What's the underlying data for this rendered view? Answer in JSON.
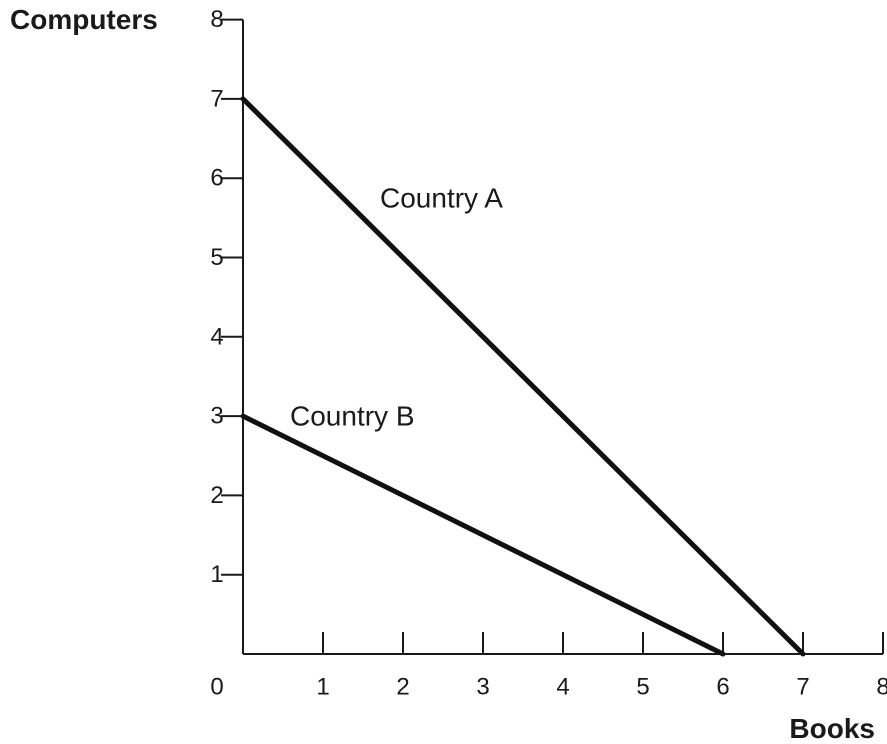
{
  "chart_data": {
    "type": "line",
    "xlabel": "Books",
    "ylabel": "Computers",
    "xlim": [
      0,
      8
    ],
    "ylim": [
      0,
      8
    ],
    "x_ticks": [
      "1",
      "2",
      "3",
      "4",
      "5",
      "6",
      "7",
      "8"
    ],
    "y_ticks": [
      "1",
      "2",
      "3",
      "4",
      "5",
      "6",
      "7",
      "8"
    ],
    "origin_label": "0",
    "grid": false,
    "series": [
      {
        "name": "Country A",
        "points": [
          [
            0,
            7
          ],
          [
            7,
            0
          ]
        ]
      },
      {
        "name": "Country B",
        "points": [
          [
            0,
            3
          ],
          [
            6,
            0
          ]
        ]
      }
    ]
  }
}
